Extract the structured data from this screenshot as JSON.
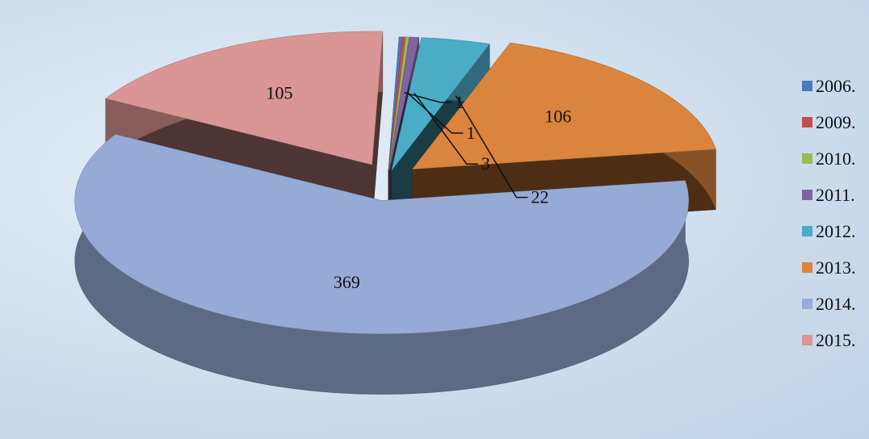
{
  "chart_data": {
    "type": "pie",
    "title": "",
    "categories": [
      "2006.",
      "2009.",
      "2010.",
      "2011.",
      "2012.",
      "2013.",
      "2014.",
      "2015."
    ],
    "values": [
      1,
      1,
      1,
      3,
      22,
      106,
      369,
      105
    ],
    "data_labels": [
      "",
      "1",
      "1",
      "3",
      "22",
      "106",
      "369",
      "105"
    ],
    "colors": [
      "#4a7ab8",
      "#c0504d",
      "#9bbb59",
      "#8064a2",
      "#4bacc6",
      "#db843d",
      "#95abd6",
      "#d99694"
    ],
    "legend": {
      "position": "right",
      "entries": [
        "2006.",
        "2009.",
        "2010.",
        "2011.",
        "2012.",
        "2013.",
        "2014.",
        "2015."
      ]
    },
    "style": "3d-exploded"
  }
}
